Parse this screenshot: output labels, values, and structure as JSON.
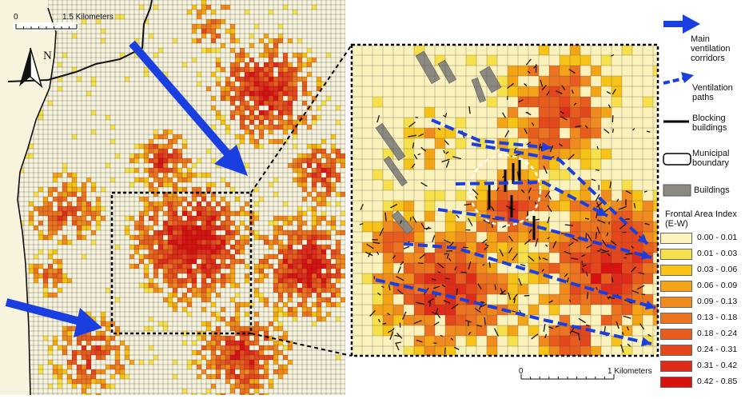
{
  "left_map": {
    "scale_min": "0",
    "scale_max": "1.5 Kilometers",
    "north_label": "N"
  },
  "inset_map": {
    "scale_min": "0",
    "scale_max": "1 Kilometers"
  },
  "legend": {
    "main_corridors": "Main ventilation corridors",
    "ventilation_paths": "Ventilation paths",
    "blocking_buildings": "Blocking buildings",
    "municipal_boundary": "Municipal boundary",
    "buildings": "Buildings",
    "fai_title": "Frontal Area Index (E-W)",
    "classes": [
      {
        "label": "0.00 - 0.01",
        "color": "#fbf2bc"
      },
      {
        "label": "0.01 - 0.03",
        "color": "#f6e04c"
      },
      {
        "label": "0.03 - 0.06",
        "color": "#f7c318"
      },
      {
        "label": "0.06 - 0.09",
        "color": "#f4a417"
      },
      {
        "label": "0.09 - 0.13",
        "color": "#f08c1f"
      },
      {
        "label": "0.13 - 0.18",
        "color": "#ec7420"
      },
      {
        "label": "0.18 - 0.24",
        "color": "#e85c1e"
      },
      {
        "label": "0.24 - 0.31",
        "color": "#e4471c"
      },
      {
        "label": "0.31 - 0.42",
        "color": "#df2b19"
      },
      {
        "label": "0.42 - 0.85",
        "color": "#d9120f"
      }
    ]
  },
  "colors": {
    "corridor_arrow": "#1a3fe0",
    "grid_line": "#222222",
    "background_cell": "#fbf2bc",
    "building": "#8c8a80"
  }
}
